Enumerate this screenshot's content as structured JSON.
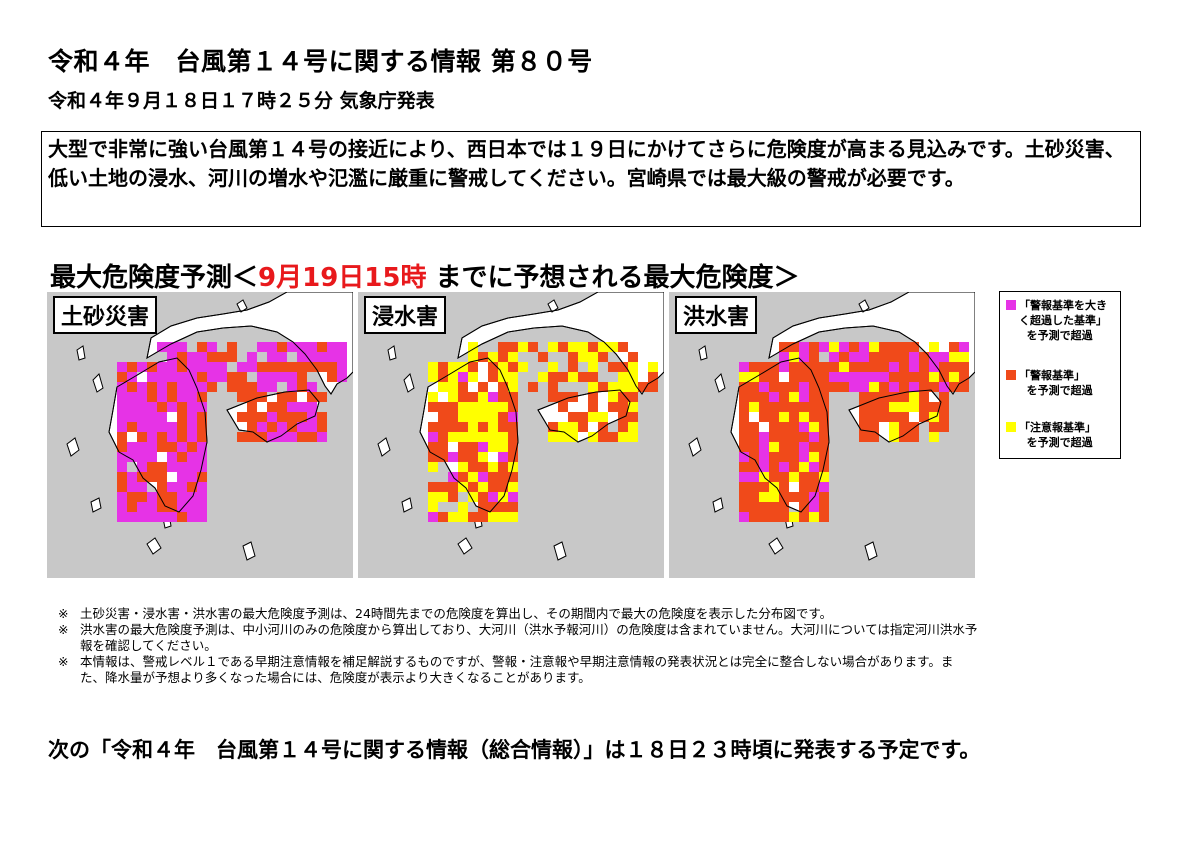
{
  "header": {
    "title": "令和４年　台風第１４号に関する情報 第８０号",
    "subtitle": "令和４年９月１８日１７時２５分 気象庁発表"
  },
  "summary": "大型で非常に強い台風第１４号の接近により、西日本では１９日にかけてさらに危険度が高まる見込みです。土砂災害、低い土地の浸水、河川の増水や氾濫に厳重に警戒してください。宮崎県では最大級の警戒が必要です。",
  "forecast_heading": {
    "prefix": "最大危険度予測＜",
    "highlight": "9月19日15時",
    "suffix": " までに予想される最大危険度＞"
  },
  "maps": [
    {
      "label": "土砂災害",
      "profile": "landslide"
    },
    {
      "label": "浸水害",
      "profile": "inundation"
    },
    {
      "label": "洪水害",
      "profile": "flood"
    }
  ],
  "legend": [
    {
      "text": "「警報基準を大き\nく超過した基準」\n  を予測で超過",
      "color": "#e633e6"
    },
    {
      "text": "「警報基準」\n  を予測で超過",
      "color": "#f04a1a"
    },
    {
      "text": "「注意報基準」\n  を予測で超過",
      "color": "#ffff00"
    }
  ],
  "colors": {
    "land": "#ffffff",
    "sea": "#c8c8c8",
    "border": "#000000"
  },
  "notes": [
    {
      "mark": "※",
      "text": "土砂災害・浸水害・洪水害の最大危険度予測は、24時間先までの危険度を算出し、その期間内で最大の危険度を表示した分布図です。"
    },
    {
      "mark": "※",
      "text": "洪水害の最大危険度予測は、中小河川のみの危険度から算出しており、大河川（洪水予報河川）の危険度は含まれていません。大河川については指定河川洪水予報を確認してください。"
    },
    {
      "mark": "※",
      "text": "本情報は、警戒レベル１である早期注意情報を補足解説するものですが、警報・注意報や早期注意情報の発表状況とは完全に整合しない場合があります。また、降水量が予想より多くなった場合には、危険度が表示より大きくなることがあります。"
    }
  ],
  "footer": "次の「令和４年　台風第１４号に関する情報（総合情報）」は１８日２３時頃に発表する予定です。"
}
